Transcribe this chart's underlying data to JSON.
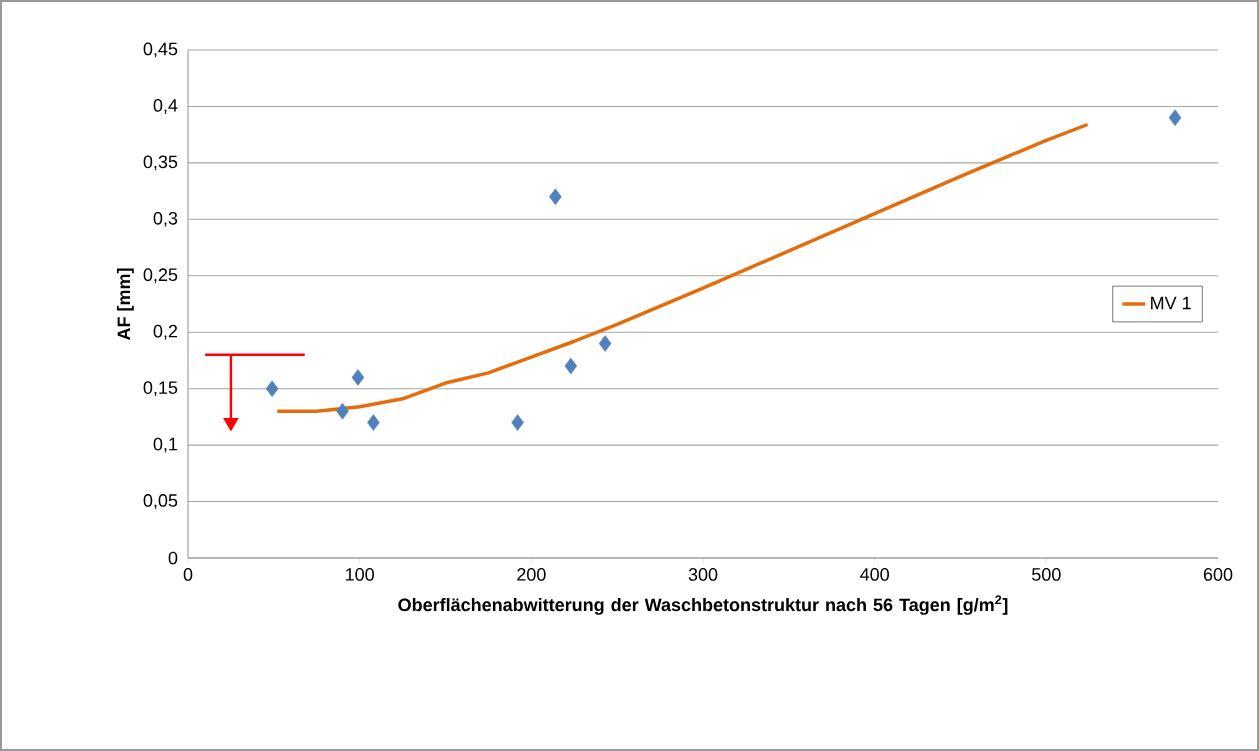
{
  "chart_data": {
    "type": "scatter",
    "xlabel": "Oberflächenabwitterung der Waschbetonstruktur nach 56 Tagen [g/m$^{2}$]",
    "ylabel": "AF [mm]",
    "series": [
      {
        "color": "#4f81bd",
        "marker": "diamond",
        "x": [
          49,
          90,
          99,
          108,
          192,
          214,
          223,
          243,
          575
        ],
        "values": [
          0.15,
          0.13,
          0.16,
          0.12,
          0.12,
          0.32,
          0.17,
          0.19,
          0.39
        ]
      },
      {
        "type": "line",
        "name": "MV 1",
        "color": "#e46c0a",
        "x": [
          52,
          75,
          100,
          125,
          150,
          175,
          200,
          225,
          250,
          275,
          300,
          350,
          400,
          450,
          500,
          524
        ],
        "values": [
          0.13,
          0.13,
          0.134,
          0.141,
          0.155,
          0.164,
          0.178,
          0.192,
          0.207,
          0.223,
          0.239,
          0.272,
          0.305,
          0.338,
          0.37,
          0.384
        ]
      },
      {
        "type": "line",
        "color": "#ff0000",
        "x": [
          10,
          68
        ],
        "values": [
          0.18,
          0.18
        ]
      },
      {
        "type": "line",
        "color": "#ff0000",
        "x": [
          25,
          25
        ],
        "values": [
          0.18,
          0.12
        ]
      }
    ],
    "xlim": [
      0,
      600
    ],
    "xticks": [
      0,
      100,
      200,
      300,
      400,
      500,
      600
    ],
    "ylim": [
      0,
      0.45
    ],
    "yticks": [
      {
        "value": 0,
        "label": "0"
      },
      {
        "value": 0.05,
        "label": "0,05"
      },
      {
        "value": 0.1,
        "label": "0,1"
      },
      {
        "value": 0.15,
        "label": "0,15"
      },
      {
        "value": 0.2,
        "label": "0,2"
      },
      {
        "value": 0.25,
        "label": "0,25"
      },
      {
        "value": 0.3,
        "label": "0,3"
      },
      {
        "value": 0.35,
        "label": "0,35"
      },
      {
        "value": 0.4,
        "label": "0,4"
      },
      {
        "value": 0.45,
        "label": "0,45"
      }
    ],
    "grid": "y",
    "legend": "right"
  }
}
